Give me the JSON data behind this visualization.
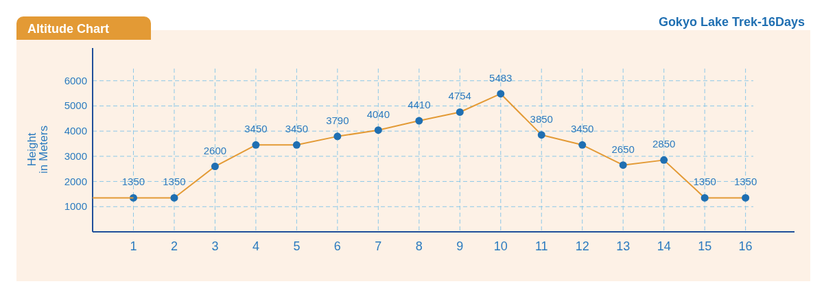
{
  "chart_data": {
    "type": "line",
    "title": "Altitude Chart",
    "subtitle": "Gokyo Lake Trek-16Days",
    "ylabel": "Height\nin Meters",
    "x": [
      1,
      2,
      3,
      4,
      5,
      6,
      7,
      8,
      9,
      10,
      11,
      12,
      13,
      14,
      15,
      16
    ],
    "series": [
      {
        "color": "#e39a35",
        "marker": "circle",
        "values": [
          1350,
          1350,
          2600,
          3450,
          3450,
          3790,
          4040,
          4410,
          4754,
          5483,
          3850,
          3450,
          2650,
          2850,
          1350,
          1350
        ]
      },
      {
        "type": "line",
        "color": "#e39a35",
        "marker": "none",
        "x": [
          0,
          1
        ],
        "values": [
          1350,
          1350
        ],
        "value_labels": [
          null,
          null
        ]
      }
    ],
    "data_labels": true,
    "xlim": [
      0,
      17.2
    ],
    "xticks": [
      1,
      2,
      3,
      4,
      5,
      6,
      7,
      8,
      9,
      10,
      11,
      12,
      13,
      14,
      15,
      16
    ],
    "ylim": [
      0,
      7300
    ],
    "yticks": [
      1000,
      2000,
      3000,
      4000,
      5000,
      6000
    ],
    "grid": true,
    "line_style": "solid"
  }
}
